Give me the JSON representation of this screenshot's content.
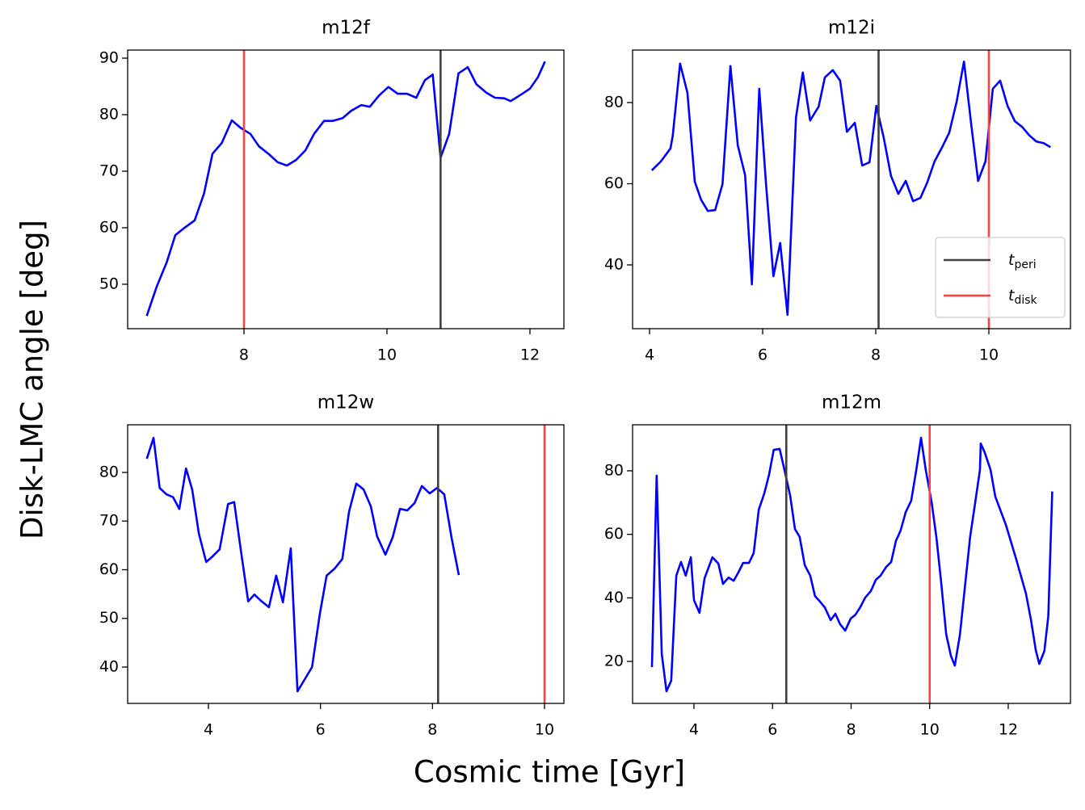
{
  "figure": {
    "xlabel": "Cosmic time [Gyr]",
    "ylabel": "Disk-LMC angle [deg]"
  },
  "chart_data": [
    {
      "type": "line",
      "title": "m12f",
      "color": "#0000ff",
      "x": [
        6.64,
        6.78,
        6.92,
        7.04,
        7.18,
        7.31,
        7.44,
        7.56,
        7.69,
        7.83,
        7.95,
        8.09,
        8.21,
        8.35,
        8.47,
        8.6,
        8.73,
        8.86,
        8.98,
        9.12,
        9.24,
        9.38,
        9.5,
        9.64,
        9.76,
        9.89,
        10.02,
        10.15,
        10.28,
        10.41,
        10.53,
        10.64,
        10.75,
        10.87,
        11.0,
        11.13,
        11.25,
        11.39,
        11.51,
        11.64,
        11.73,
        11.88,
        12.0,
        12.11,
        12.21
      ],
      "values": [
        44.4,
        49.6,
        53.9,
        58.7,
        60.1,
        61.3,
        66,
        73.1,
        75,
        79,
        77.7,
        76.6,
        74.4,
        73,
        71.6,
        71,
        72,
        73.7,
        76.6,
        78.9,
        78.9,
        79.4,
        80.7,
        81.7,
        81.4,
        83.4,
        84.9,
        83.7,
        83.7,
        83,
        86.1,
        87.1,
        72.4,
        76.6,
        87.3,
        88.4,
        85.4,
        83.9,
        83,
        82.9,
        82.4,
        83.6,
        84.6,
        86.6,
        89.4
      ],
      "vlines": [
        {
          "x": 10.75,
          "color": "#404040"
        },
        {
          "x": 8,
          "color": "#ff4040"
        }
      ],
      "xlim": [
        6.373,
        12.475
      ],
      "ylim": [
        42.14,
        91.43
      ],
      "xticks": [
        8,
        10,
        12
      ],
      "yticks": [
        50,
        60,
        70,
        80,
        90
      ]
    },
    {
      "type": "line",
      "title": "m12i",
      "color": "#0000ff",
      "x": [
        4.04,
        4.2,
        4.37,
        4.41,
        4.54,
        4.67,
        4.8,
        4.91,
        5.03,
        5.16,
        5.29,
        5.43,
        5.56,
        5.69,
        5.81,
        5.94,
        6.06,
        6.19,
        6.31,
        6.44,
        6.59,
        6.71,
        6.84,
        6.99,
        7.1,
        7.24,
        7.37,
        7.49,
        7.63,
        7.76,
        7.89,
        8.01,
        8.14,
        8.27,
        8.4,
        8.53,
        8.66,
        8.79,
        8.91,
        9.04,
        9.17,
        9.3,
        9.43,
        9.56,
        9.69,
        9.81,
        9.94,
        10.07,
        10.2,
        10.33,
        10.46,
        10.59,
        10.71,
        10.84,
        10.97,
        11.09
      ],
      "values": [
        63.3,
        65.5,
        68.7,
        71.8,
        89.6,
        82.4,
        60.5,
        56.1,
        53.3,
        53.5,
        59.9,
        89,
        69.5,
        62.1,
        35.2,
        83.4,
        59.9,
        37.2,
        45.4,
        27.7,
        76.4,
        87.4,
        75.6,
        79,
        86.2,
        88,
        85.4,
        72.8,
        75,
        64.5,
        65.3,
        79.2,
        71.4,
        61.9,
        57.5,
        60.7,
        55.7,
        56.5,
        60.3,
        65.5,
        68.9,
        72.6,
        80.2,
        90.1,
        74.4,
        60.7,
        65.5,
        83.4,
        85.4,
        79.2,
        75.4,
        74,
        72,
        70.4,
        70,
        69
      ],
      "vlines": [
        {
          "name": "t",
          "subscript": "peri",
          "x": 8.05,
          "color": "#404040"
        },
        {
          "name": "t",
          "subscript": "disk",
          "x": 10,
          "color": "#ff4040"
        }
      ],
      "legend": "lower right",
      "xlim": [
        3.7,
        11.443
      ],
      "ylim": [
        24.28,
        92.94
      ],
      "xticks": [
        4,
        6,
        8,
        10
      ],
      "yticks": [
        40,
        60,
        80
      ]
    },
    {
      "type": "line",
      "title": "m12w",
      "color": "#0000ff",
      "x": [
        2.9,
        3.02,
        3.13,
        3.25,
        3.37,
        3.48,
        3.6,
        3.71,
        3.83,
        3.96,
        4.07,
        4.2,
        4.35,
        4.46,
        4.58,
        4.71,
        4.82,
        4.94,
        5.08,
        5.21,
        5.33,
        5.47,
        5.59,
        5.85,
        5.99,
        6.11,
        6.25,
        6.39,
        6.51,
        6.64,
        6.77,
        6.9,
        7.01,
        7.16,
        7.29,
        7.42,
        7.55,
        7.68,
        7.81,
        7.95,
        8.08,
        8.21,
        8.34,
        8.47
      ],
      "values": [
        82.8,
        87.1,
        76.8,
        75.5,
        74.9,
        72.5,
        80.8,
        76.5,
        67.4,
        61.6,
        62.7,
        64.2,
        73.5,
        73.9,
        63.9,
        53.5,
        54.9,
        53.6,
        52.3,
        58.8,
        53.3,
        64.4,
        35,
        40,
        51,
        58.8,
        60.2,
        62.2,
        71.9,
        77.7,
        76.5,
        73,
        66.9,
        63.1,
        66.7,
        72.5,
        72.2,
        73.7,
        77.2,
        75.7,
        76.8,
        75.5,
        66.6,
        58.9
      ],
      "vlines": [
        {
          "x": 8.1,
          "color": "#404040"
        },
        {
          "x": 10,
          "color": "#ff4040"
        }
      ],
      "xlim": [
        2.558,
        10.346
      ],
      "ylim": [
        32.53,
        89.79
      ],
      "xticks": [
        4,
        6,
        8,
        10
      ],
      "yticks": [
        40,
        50,
        60,
        70,
        80
      ]
    },
    {
      "type": "line",
      "title": "m12m",
      "color": "#0000ff",
      "x": [
        2.93,
        3.05,
        3.18,
        3.3,
        3.42,
        3.55,
        3.67,
        3.79,
        3.92,
        4.0,
        4.14,
        4.27,
        4.47,
        4.62,
        4.74,
        4.88,
        5.01,
        5.13,
        5.25,
        5.4,
        5.52,
        5.65,
        5.79,
        5.91,
        6.03,
        6.18,
        6.3,
        6.45,
        6.57,
        6.69,
        6.82,
        6.96,
        7.08,
        7.21,
        7.33,
        7.48,
        7.6,
        7.72,
        7.85,
        7.99,
        8.11,
        8.23,
        8.36,
        8.5,
        8.63,
        8.75,
        8.89,
        9.02,
        9.14,
        9.26,
        9.39,
        9.53,
        9.66,
        9.78,
        9.9,
        10.05,
        10.17,
        10.29,
        10.42,
        10.54,
        10.64,
        10.77,
        10.89,
        11.03,
        11.16,
        11.28,
        11.3,
        11.4,
        11.55,
        11.67,
        11.94,
        12.2,
        12.45,
        12.58,
        12.7,
        12.79,
        12.92,
        13.02,
        13.12
      ],
      "values": [
        18.2,
        78.5,
        22.3,
        10.6,
        13.9,
        47,
        51.3,
        47,
        52.8,
        39.3,
        35.3,
        46.2,
        52.8,
        50.8,
        44.4,
        46.4,
        45.4,
        48,
        51,
        51,
        54.1,
        67.8,
        72.9,
        78.7,
        86.6,
        86.9,
        80.5,
        72.1,
        61.7,
        59.2,
        50.3,
        47,
        40.6,
        38.8,
        37,
        33,
        35,
        31.7,
        29.7,
        33.5,
        34.7,
        37,
        40.1,
        42.1,
        45.7,
        47,
        49.7,
        51.3,
        57.9,
        61.2,
        67,
        70.6,
        80.3,
        90.4,
        80.3,
        70.1,
        59.2,
        45.2,
        28.6,
        21.8,
        18.7,
        28.4,
        42.6,
        59.2,
        70.1,
        80.3,
        88.6,
        85.8,
        80.3,
        71.9,
        63,
        52.3,
        41.4,
        33,
        23.6,
        19.2,
        23.3,
        34.2,
        73.5
      ],
      "vlines": [
        {
          "x": 6.35,
          "color": "#404040"
        },
        {
          "x": 10,
          "color": "#ff4040"
        }
      ],
      "xlim": [
        2.437,
        13.584
      ],
      "ylim": [
        6.78,
        94.49
      ],
      "xticks": [
        4,
        6,
        8,
        10,
        12
      ],
      "yticks": [
        20,
        40,
        60,
        80
      ]
    }
  ]
}
